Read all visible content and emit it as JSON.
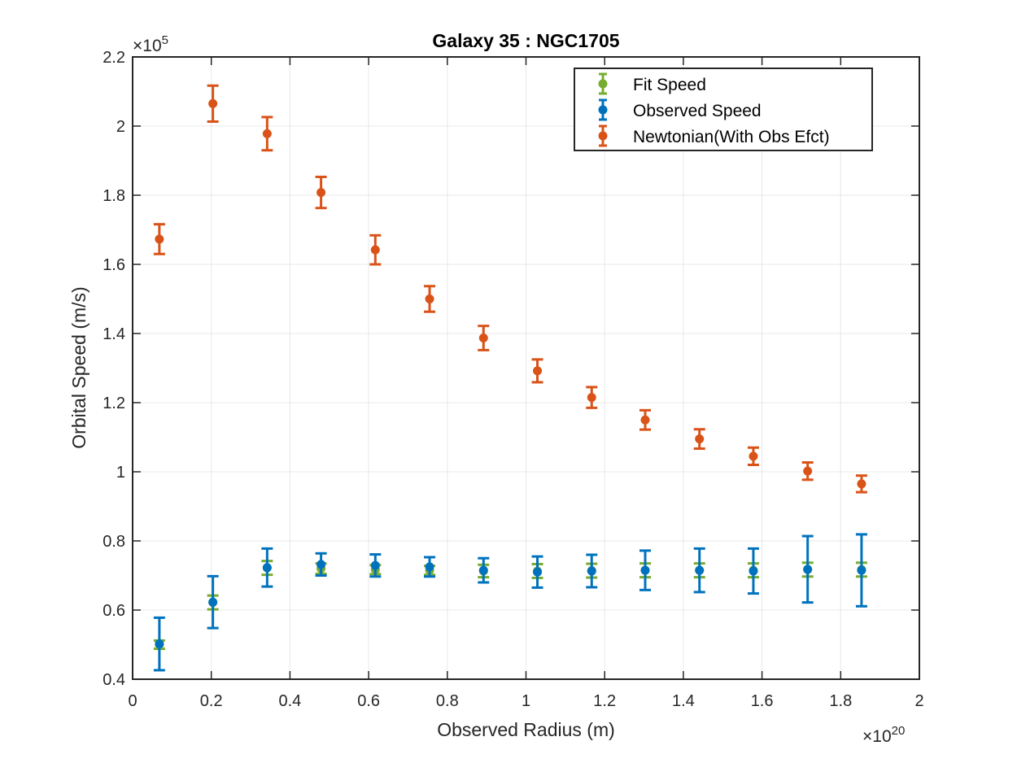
{
  "chart_data": {
    "type": "scatter",
    "title": "Galaxy 35 : NGC1705",
    "xlabel": "Observed Radius (m)",
    "ylabel": "Orbital Speed (m/s)",
    "x_exponent": {
      "base": "×10",
      "power": "20"
    },
    "y_exponent": {
      "base": "×10",
      "power": "5"
    },
    "xlim": [
      0,
      2
    ],
    "ylim": [
      0.4,
      2.2
    ],
    "x_ticks": [
      0,
      0.2,
      0.4,
      0.6,
      0.8,
      1,
      1.2,
      1.4,
      1.6,
      1.8,
      2
    ],
    "x_tick_labels": [
      "0",
      "0.2",
      "0.4",
      "0.6",
      "0.8",
      "1",
      "1.2",
      "1.4",
      "1.6",
      "1.8",
      "2"
    ],
    "y_ticks": [
      0.4,
      0.6,
      0.8,
      1,
      1.2,
      1.4,
      1.6,
      1.8,
      2,
      2.2
    ],
    "y_tick_labels": [
      "0.4",
      "0.6",
      "0.8",
      "1",
      "1.2",
      "1.4",
      "1.6",
      "1.8",
      "2",
      "2.2"
    ],
    "grid": true,
    "legend_position": "top-right",
    "series": [
      {
        "name": "Fit Speed",
        "color": "#77AC30",
        "x": [
          0.068,
          0.204,
          0.342,
          0.479,
          0.617,
          0.755,
          0.892,
          1.029,
          1.167,
          1.303,
          1.441,
          1.578,
          1.716,
          1.853
        ],
        "y": [
          0.5,
          0.622,
          0.722,
          0.72,
          0.717,
          0.715,
          0.713,
          0.713,
          0.714,
          0.715,
          0.715,
          0.715,
          0.717,
          0.717
        ],
        "err": [
          0.012,
          0.02,
          0.02,
          0.015,
          0.013,
          0.013,
          0.018,
          0.02,
          0.02,
          0.02,
          0.02,
          0.02,
          0.02,
          0.02
        ]
      },
      {
        "name": "Observed Speed",
        "color": "#0072BD",
        "x": [
          0.068,
          0.204,
          0.342,
          0.479,
          0.617,
          0.755,
          0.892,
          1.029,
          1.167,
          1.303,
          1.441,
          1.578,
          1.716,
          1.853
        ],
        "y": [
          0.502,
          0.623,
          0.723,
          0.732,
          0.729,
          0.725,
          0.715,
          0.71,
          0.713,
          0.715,
          0.715,
          0.713,
          0.718,
          0.715
        ],
        "err": [
          0.076,
          0.075,
          0.055,
          0.032,
          0.032,
          0.028,
          0.035,
          0.045,
          0.047,
          0.057,
          0.063,
          0.065,
          0.096,
          0.104
        ]
      },
      {
        "name": "Newtonian(With Obs Efct)",
        "color": "#D95319",
        "x": [
          0.068,
          0.204,
          0.342,
          0.479,
          0.617,
          0.755,
          0.892,
          1.029,
          1.167,
          1.303,
          1.441,
          1.578,
          1.716,
          1.853
        ],
        "y": [
          1.673,
          2.065,
          1.978,
          1.808,
          1.642,
          1.5,
          1.387,
          1.292,
          1.215,
          1.15,
          1.095,
          1.045,
          1.002,
          0.965
        ],
        "err": [
          0.043,
          0.052,
          0.048,
          0.045,
          0.042,
          0.037,
          0.035,
          0.033,
          0.03,
          0.028,
          0.028,
          0.025,
          0.025,
          0.024
        ]
      }
    ]
  }
}
